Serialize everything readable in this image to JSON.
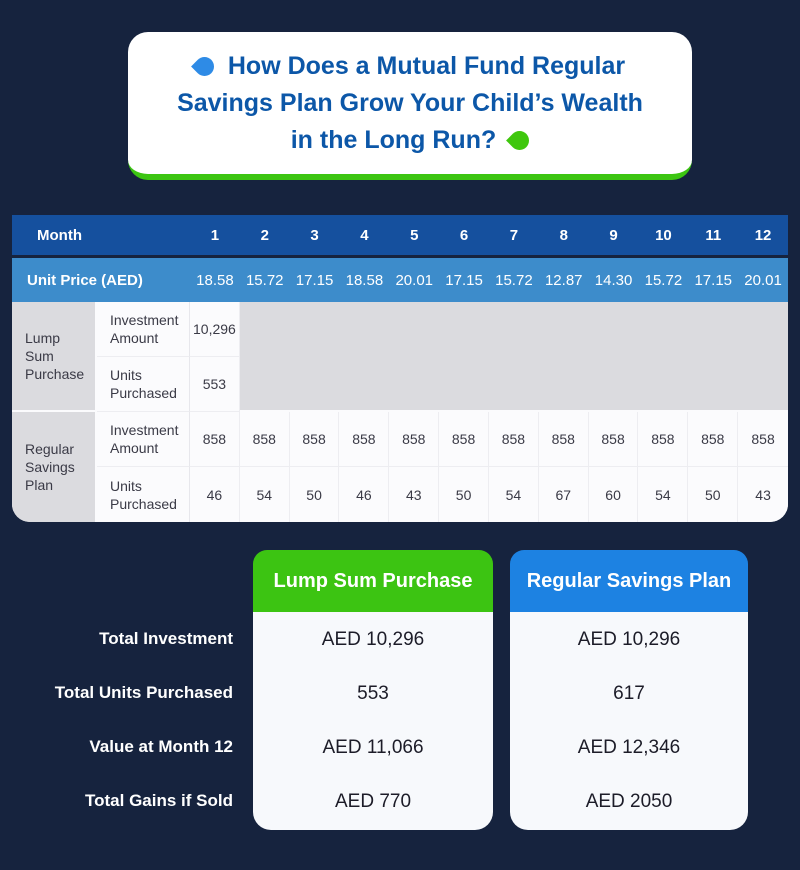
{
  "title": {
    "lines": [
      "How Does a Mutual Fund Regular",
      "Savings Plan Grow Your Child’s Wealth",
      "in the Long Run?"
    ]
  },
  "colors": {
    "background": "#16233E",
    "month_row_blue": "#15509E",
    "unit_price_blue": "#3D8CCB",
    "title_blue": "#0C57A8",
    "accent_green": "#3CC412",
    "card_header_blue": "#1D82E2",
    "gray_cell": "#DBDBDF"
  },
  "table": {
    "month_header": "Month",
    "months": [
      "1",
      "2",
      "3",
      "4",
      "5",
      "6",
      "7",
      "8",
      "9",
      "10",
      "11",
      "12"
    ],
    "unit_price_label": "Unit Price (AED)",
    "unit_prices": [
      "18.58",
      "15.72",
      "17.15",
      "18.58",
      "20.01",
      "17.15",
      "15.72",
      "12.87",
      "14.30",
      "15.72",
      "17.15",
      "20.01"
    ],
    "lump_sum": {
      "group_label": "Lump Sum Purchase",
      "investment_label": "Investment Amount",
      "investment_value": "10,296",
      "units_label": "Units Purchased",
      "units_value": "553"
    },
    "regular": {
      "group_label": "Regular Savings Plan",
      "investment_label": "Investment Amount",
      "investment_values": [
        "858",
        "858",
        "858",
        "858",
        "858",
        "858",
        "858",
        "858",
        "858",
        "858",
        "858",
        "858"
      ],
      "units_label": "Units Purchased",
      "units_values": [
        "46",
        "54",
        "50",
        "46",
        "43",
        "50",
        "54",
        "67",
        "60",
        "54",
        "50",
        "43"
      ]
    }
  },
  "comparison": {
    "row_labels": [
      "Total Investment",
      "Total Units Purchased",
      "Value at Month 12",
      "Total Gains if Sold"
    ],
    "lump_sum_card": {
      "title": "Lump Sum Purchase",
      "values": [
        "AED 10,296",
        "553",
        "AED 11,066",
        "AED 770"
      ]
    },
    "regular_card": {
      "title": "Regular Savings Plan",
      "values": [
        "AED 10,296",
        "617",
        "AED 12,346",
        "AED 2050"
      ]
    }
  },
  "chart_data": {
    "type": "table",
    "title": "How Does a Mutual Fund Regular Savings Plan Grow Your Child’s Wealth in the Long Run?",
    "columns": [
      "Month 1",
      "Month 2",
      "Month 3",
      "Month 4",
      "Month 5",
      "Month 6",
      "Month 7",
      "Month 8",
      "Month 9",
      "Month 10",
      "Month 11",
      "Month 12"
    ],
    "rows": [
      {
        "label": "Unit Price (AED)",
        "values": [
          18.58,
          15.72,
          17.15,
          18.58,
          20.01,
          17.15,
          15.72,
          12.87,
          14.3,
          15.72,
          17.15,
          20.01
        ]
      },
      {
        "label": "Lump Sum Purchase - Investment Amount",
        "values": [
          10296,
          null,
          null,
          null,
          null,
          null,
          null,
          null,
          null,
          null,
          null,
          null
        ]
      },
      {
        "label": "Lump Sum Purchase - Units Purchased",
        "values": [
          553,
          null,
          null,
          null,
          null,
          null,
          null,
          null,
          null,
          null,
          null,
          null
        ]
      },
      {
        "label": "Regular Savings Plan - Investment Amount",
        "values": [
          858,
          858,
          858,
          858,
          858,
          858,
          858,
          858,
          858,
          858,
          858,
          858
        ]
      },
      {
        "label": "Regular Savings Plan - Units Purchased",
        "values": [
          46,
          54,
          50,
          46,
          43,
          50,
          54,
          67,
          60,
          54,
          50,
          43
        ]
      }
    ],
    "summary": {
      "row_labels": [
        "Total Investment",
        "Total Units Purchased",
        "Value at Month 12",
        "Total Gains if Sold"
      ],
      "lump_sum_purchase": [
        "AED 10,296",
        "553",
        "AED 11,066",
        "AED 770"
      ],
      "regular_savings_plan": [
        "AED 10,296",
        "617",
        "AED 12,346",
        "AED 2050"
      ]
    }
  }
}
